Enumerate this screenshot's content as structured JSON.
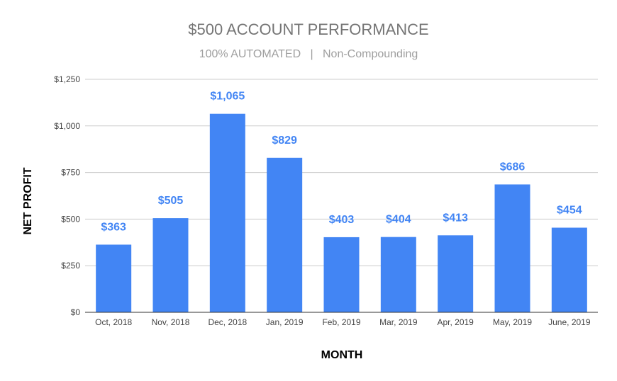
{
  "chart_data": {
    "type": "bar",
    "title": "$500 ACCOUNT PERFORMANCE",
    "subtitle": "100% AUTOMATED   |   Non-Compounding",
    "xlabel": "MONTH",
    "ylabel": "NET PROFIT",
    "categories": [
      "Oct, 2018",
      "Nov, 2018",
      "Dec, 2018",
      "Jan, 2019",
      "Feb, 2019",
      "Mar, 2019",
      "Apr, 2019",
      "May, 2019",
      "June, 2019"
    ],
    "values": [
      363,
      505,
      1065,
      829,
      403,
      404,
      413,
      686,
      454
    ],
    "value_labels": [
      "$363",
      "$505",
      "$1,065",
      "$829",
      "$403",
      "$404",
      "$413",
      "$686",
      "$454"
    ],
    "ylim": [
      0,
      1250
    ],
    "yticks": [
      0,
      250,
      500,
      750,
      1000,
      1250
    ],
    "ytick_labels": [
      "$0",
      "$250",
      "$500",
      "$750",
      "$1,000",
      "$1,250"
    ],
    "grid": true,
    "legend": "none",
    "colors": {
      "bar": "#4285f4",
      "label": "#4285f4",
      "grid": "#cccccc"
    }
  }
}
